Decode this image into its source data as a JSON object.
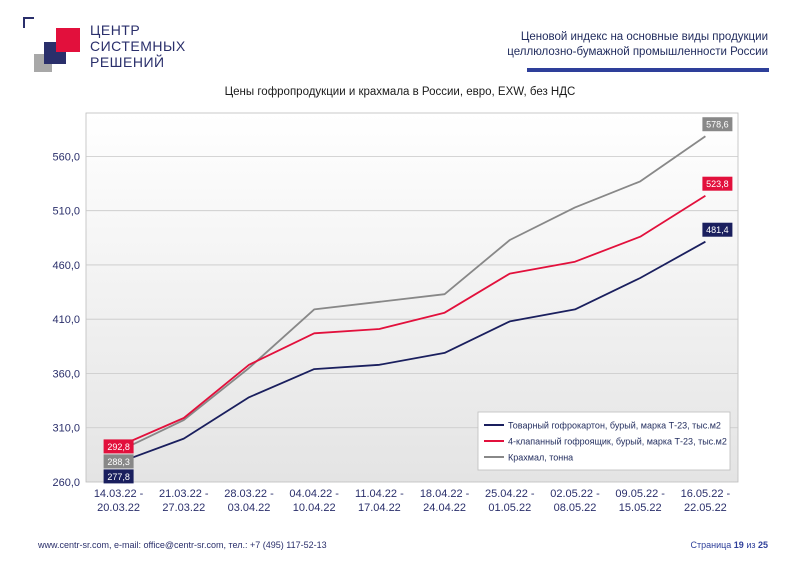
{
  "logo": {
    "lines": [
      "ЦЕНТР",
      "СИСТЕМНЫХ",
      "РЕШЕНИЙ"
    ],
    "accent_colors": [
      "#e2103c",
      "#2a2f6b",
      "#8a8a8a"
    ]
  },
  "header": {
    "line1": "Ценовой индекс на основные виды продукции",
    "line2": "целлюлозно-бумажной промышленности России",
    "bar_color": "#2e3f9a"
  },
  "chart_data": {
    "type": "line",
    "title": "Цены гофропродукции и крахмала в России, евро, EXW, без НДС",
    "categories": [
      [
        "14.03.22 -",
        "20.03.22"
      ],
      [
        "21.03.22 -",
        "27.03.22"
      ],
      [
        "28.03.22 -",
        "03.04.22"
      ],
      [
        "04.04.22 -",
        "10.04.22"
      ],
      [
        "11.04.22 -",
        "17.04.22"
      ],
      [
        "18.04.22 -",
        "24.04.22"
      ],
      [
        "25.04.22 -",
        "01.05.22"
      ],
      [
        "02.05.22 -",
        "08.05.22"
      ],
      [
        "09.05.22 -",
        "15.05.22"
      ],
      [
        "16.05.22 -",
        "22.05.22"
      ]
    ],
    "ylim": [
      260,
      600
    ],
    "yticks": [
      "260,0",
      "310,0",
      "360,0",
      "410,0",
      "460,0",
      "510,0",
      "560,0"
    ],
    "ytick_values": [
      260,
      310,
      360,
      410,
      460,
      510,
      560
    ],
    "grid": true,
    "legend_position": "bottom-right",
    "series": [
      {
        "name": "Товарный гофрокартон, бурый, марка Т-23, тыс.м2",
        "color": "#1a1f5e",
        "values": [
          277.8,
          300,
          338,
          364,
          368,
          379,
          408,
          419,
          448,
          481.4
        ],
        "start_label": "277,8",
        "end_label": "481,4"
      },
      {
        "name": "4-клапанный гофроящик, бурый, марка Т-23, тыс.м2",
        "color": "#e2103c",
        "values": [
          292.8,
          319,
          368,
          397,
          401,
          416,
          452,
          463,
          486,
          523.8
        ],
        "start_label": "292,8",
        "end_label": "523,8"
      },
      {
        "name": "Крахмал, тонна",
        "color": "#888888",
        "values": [
          288.3,
          317,
          365,
          419,
          426,
          433,
          483,
          513,
          537,
          578.6
        ],
        "start_label": "288,3",
        "end_label": "578,6"
      }
    ]
  },
  "footer": {
    "contacts": "www.centr-sr.com, e-mail: office@centr-sr.com, тел.: +7 (495) 117-52-13",
    "page_word": "Страница",
    "page_current": "19",
    "page_of": "из",
    "page_total": "25"
  }
}
